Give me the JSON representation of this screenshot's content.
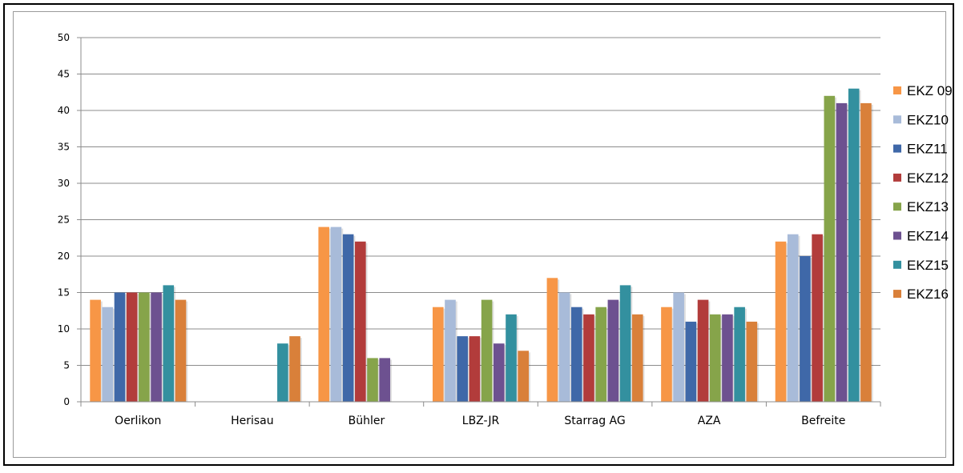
{
  "chart_data": {
    "type": "bar",
    "categories": [
      "Oerlikon",
      "Herisau",
      "Bühler",
      "LBZ-JR",
      "Starrag AG",
      "AZA",
      "Befreite"
    ],
    "ylim": [
      0,
      50
    ],
    "yticks": [
      0,
      5,
      10,
      15,
      20,
      25,
      30,
      35,
      40,
      45,
      50
    ],
    "grid": true,
    "legend_position": "right",
    "title": "",
    "xlabel": "",
    "ylabel": "",
    "series": [
      {
        "name": "EKZ 09",
        "color": "#f79646",
        "values": [
          14,
          0,
          24,
          13,
          17,
          13,
          22
        ]
      },
      {
        "name": "EKZ10",
        "color": "#a8bbd9",
        "values": [
          13,
          0,
          24,
          14,
          15,
          15,
          23
        ]
      },
      {
        "name": "EKZ11",
        "color": "#3f68a8",
        "values": [
          15,
          0,
          23,
          9,
          13,
          11,
          20
        ]
      },
      {
        "name": "EKZ12",
        "color": "#b23c3b",
        "values": [
          15,
          0,
          22,
          9,
          12,
          14,
          23
        ]
      },
      {
        "name": "EKZ13",
        "color": "#86a44a",
        "values": [
          15,
          0,
          6,
          14,
          13,
          12,
          42
        ]
      },
      {
        "name": "EKZ14",
        "color": "#6d5190",
        "values": [
          15,
          0,
          6,
          8,
          14,
          12,
          41
        ]
      },
      {
        "name": "EKZ15",
        "color": "#33909f",
        "values": [
          16,
          8,
          0,
          12,
          16,
          13,
          43
        ]
      },
      {
        "name": "EKZ16",
        "color": "#d9803a",
        "values": [
          14,
          9,
          0,
          7,
          12,
          11,
          41
        ]
      }
    ]
  }
}
